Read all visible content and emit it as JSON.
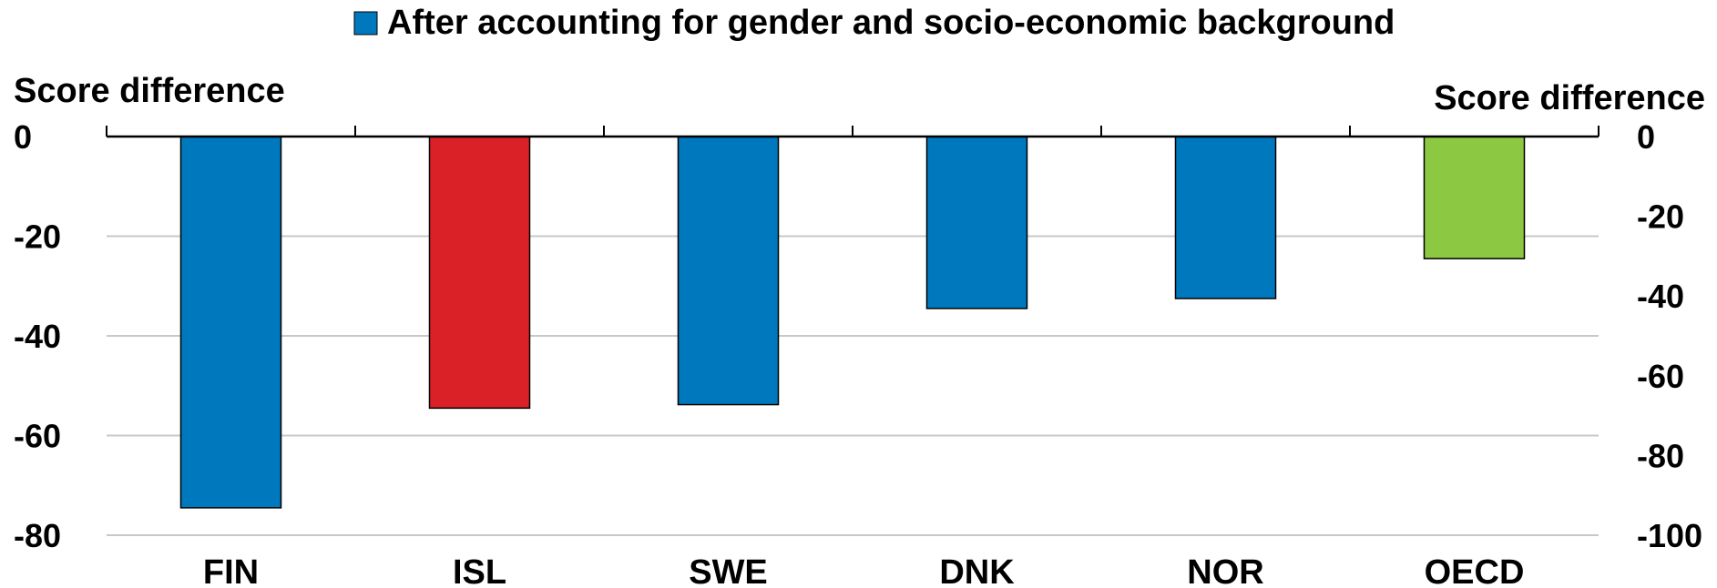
{
  "chart_data": {
    "type": "bar",
    "legend": {
      "label": "After accounting for gender and socio-economic background",
      "color": "#0078BE",
      "position": "top-center"
    },
    "y_left": {
      "label": "Score difference",
      "ticks": [
        0,
        -20,
        -40,
        -60,
        -80
      ],
      "range": [
        -80,
        0
      ]
    },
    "y_right": {
      "label": "Score difference",
      "ticks": [
        0,
        -20,
        -40,
        -60,
        -80,
        -100
      ],
      "range": [
        -100,
        0
      ]
    },
    "grid": true,
    "categories": [
      "FIN",
      "ISL",
      "SWE",
      "DNK",
      "NOR",
      "OECD"
    ],
    "series": [
      {
        "name": "After accounting for gender and socio-economic background",
        "values": [
          -74.5,
          -54.5,
          -53.8,
          -34.5,
          -32.5,
          -24.5
        ],
        "colors": [
          "#0078BE",
          "#DA2128",
          "#0078BE",
          "#0078BE",
          "#0078BE",
          "#8CC841"
        ]
      }
    ]
  }
}
